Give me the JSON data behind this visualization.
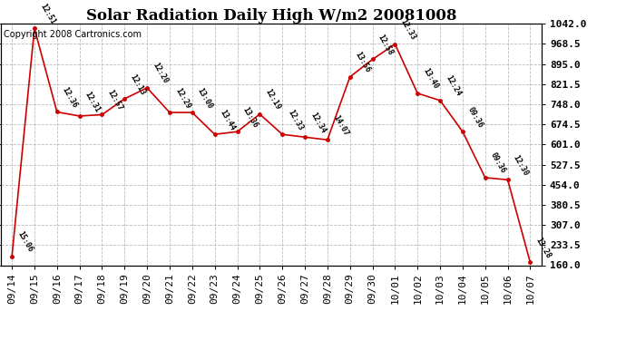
{
  "title": "Solar Radiation Daily High W/m2 20081008",
  "copyright": "Copyright 2008 Cartronics.com",
  "background_color": "#ffffff",
  "line_color": "#cc0000",
  "grid_color": "#bbbbbb",
  "ylim": [
    160.0,
    1042.0
  ],
  "yticks": [
    160.0,
    233.5,
    307.0,
    380.5,
    454.0,
    527.5,
    601.0,
    674.5,
    748.0,
    821.5,
    895.0,
    968.5,
    1042.0
  ],
  "dates": [
    "09/14",
    "09/15",
    "09/16",
    "09/17",
    "09/18",
    "09/19",
    "09/20",
    "09/21",
    "09/22",
    "09/23",
    "09/24",
    "09/25",
    "09/26",
    "09/27",
    "09/28",
    "09/29",
    "09/30",
    "10/01",
    "10/02",
    "10/03",
    "10/04",
    "10/05",
    "10/06",
    "10/07"
  ],
  "values": [
    192,
    1025,
    720,
    705,
    710,
    768,
    808,
    718,
    718,
    638,
    648,
    712,
    638,
    628,
    618,
    848,
    912,
    968,
    788,
    762,
    648,
    480,
    472,
    170
  ],
  "point_labels": [
    "15:06",
    "12:51",
    "12:36",
    "12:31",
    "12:57",
    "12:13",
    "12:20",
    "12:29",
    "13:00",
    "13:44",
    "13:36",
    "12:19",
    "12:33",
    "12:34",
    "14:07",
    "13:56",
    "12:58",
    "12:33",
    "13:40",
    "12:24",
    "09:36",
    "09:36",
    "12:30",
    "13:28"
  ],
  "title_fontsize": 12,
  "tick_fontsize": 8,
  "label_fontsize": 6,
  "copyright_fontsize": 7
}
